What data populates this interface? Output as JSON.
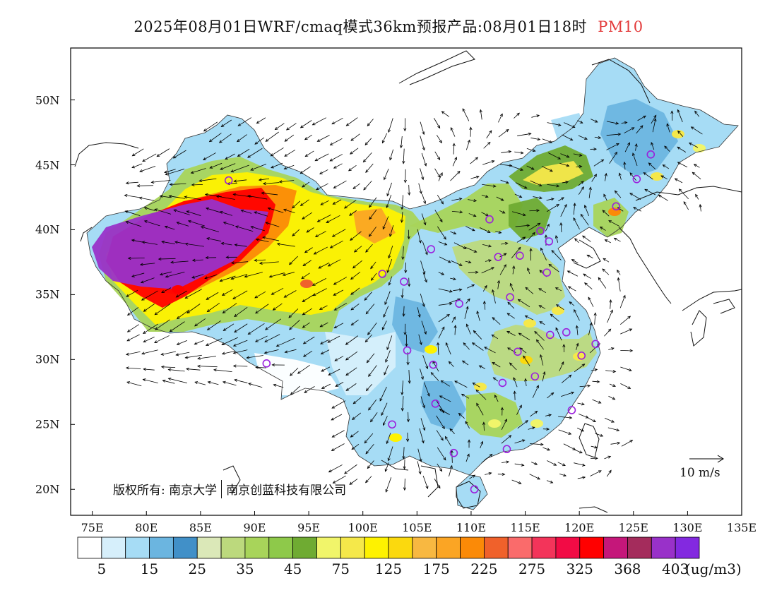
{
  "title": {
    "main": "2025年08月01日WRF/cmaq模式36km预报产品:08月01日18时",
    "pollutant": "PM10"
  },
  "axes": {
    "x_ticks": [
      "75E",
      "80E",
      "85E",
      "90E",
      "95E",
      "100E",
      "105E",
      "110E",
      "115E",
      "120E",
      "125E",
      "130E",
      "135E"
    ],
    "y_ticks": [
      "50N",
      "45N",
      "40N",
      "35N",
      "30N",
      "25N",
      "20N"
    ],
    "lon_range": [
      73,
      135
    ],
    "lat_range": [
      18,
      54
    ]
  },
  "colorbar": {
    "colors": [
      "#ffffff",
      "#d6effb",
      "#a6dcf5",
      "#6bb5e0",
      "#4190c8",
      "#dbe8b8",
      "#bcd97d",
      "#a8d45a",
      "#8ec94a",
      "#6fab32",
      "#f1f56a",
      "#f5e84a",
      "#fef200",
      "#fbd90e",
      "#f8b841",
      "#fba524",
      "#fb8a07",
      "#f0612b",
      "#fa6b6b",
      "#f3345a",
      "#f20b45",
      "#ff0000",
      "#c5177a",
      "#a42c5c",
      "#9931c9",
      "#8329e0"
    ],
    "labels": [
      "5",
      "15",
      "25",
      "35",
      "45",
      "75",
      "125",
      "175",
      "225",
      "275",
      "325",
      "368",
      "403"
    ],
    "unit": "(ug/m3)"
  },
  "copyright": {
    "owner": "版权所有: 南京大学",
    "company": "南京创蓝科技有限公司"
  },
  "wind_reference": {
    "label": "10 m/s"
  },
  "stations": [
    {
      "lon": 87.6,
      "lat": 43.8
    },
    {
      "lon": 91.1,
      "lat": 29.7
    },
    {
      "lon": 101.8,
      "lat": 36.6
    },
    {
      "lon": 103.8,
      "lat": 36.0
    },
    {
      "lon": 106.3,
      "lat": 38.5
    },
    {
      "lon": 111.7,
      "lat": 40.8
    },
    {
      "lon": 116.4,
      "lat": 39.9
    },
    {
      "lon": 117.2,
      "lat": 39.1
    },
    {
      "lon": 114.5,
      "lat": 38.0
    },
    {
      "lon": 112.5,
      "lat": 37.9
    },
    {
      "lon": 117.0,
      "lat": 36.7
    },
    {
      "lon": 113.6,
      "lat": 34.8
    },
    {
      "lon": 108.9,
      "lat": 34.3
    },
    {
      "lon": 104.1,
      "lat": 30.7
    },
    {
      "lon": 106.5,
      "lat": 29.6
    },
    {
      "lon": 106.7,
      "lat": 26.6
    },
    {
      "lon": 102.7,
      "lat": 25.0
    },
    {
      "lon": 108.4,
      "lat": 22.8
    },
    {
      "lon": 113.3,
      "lat": 23.1
    },
    {
      "lon": 110.3,
      "lat": 20.0
    },
    {
      "lon": 112.9,
      "lat": 28.2
    },
    {
      "lon": 114.3,
      "lat": 30.6
    },
    {
      "lon": 115.9,
      "lat": 28.7
    },
    {
      "lon": 119.3,
      "lat": 26.1
    },
    {
      "lon": 120.2,
      "lat": 30.3
    },
    {
      "lon": 121.5,
      "lat": 31.2
    },
    {
      "lon": 118.8,
      "lat": 32.1
    },
    {
      "lon": 117.3,
      "lat": 31.9
    },
    {
      "lon": 123.4,
      "lat": 41.8
    },
    {
      "lon": 125.3,
      "lat": 43.9
    },
    {
      "lon": 126.6,
      "lat": 45.8
    }
  ]
}
